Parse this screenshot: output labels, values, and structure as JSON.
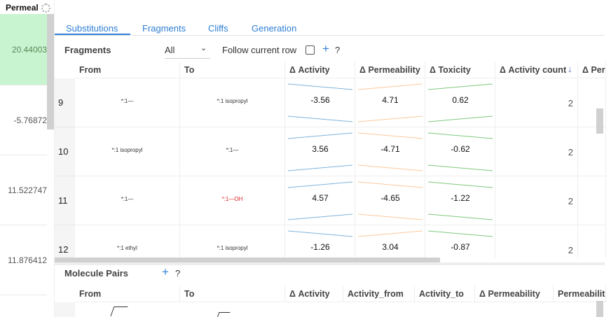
{
  "left_column": {
    "header": "Permeal",
    "values": [
      "20.44003",
      "-5.76872",
      "11.522747",
      "11.876412",
      ""
    ],
    "highlight_color": "#c8f5d0"
  },
  "tabs": [
    "Substitutions",
    "Fragments",
    "Cliffs",
    "Generation"
  ],
  "fragments_bar": {
    "title": "Fragments",
    "filter_value": "All",
    "follow_label": "Follow current row",
    "plus": "+",
    "help": "?"
  },
  "fragments_table": {
    "columns": [
      "From",
      "To",
      "Δ Activity",
      "Δ Permeability",
      "Δ Toxicity",
      "Δ Activity count",
      "Δ Per"
    ],
    "sort_icon": "↓",
    "rows": [
      {
        "id": "9",
        "from": "*:1—",
        "to": "*:1 isopropyl",
        "d_activity": "-3.56",
        "d_perm": "4.71",
        "d_tox": "0.62",
        "count": "2"
      },
      {
        "id": "10",
        "from": "*:1 isopropyl",
        "to": "*:1—",
        "d_activity": "3.56",
        "d_perm": "-4.71",
        "d_tox": "-0.62",
        "count": "2"
      },
      {
        "id": "11",
        "from": "*:1—",
        "to": "*:1—OH",
        "d_activity": "4.57",
        "d_perm": "-4.65",
        "d_tox": "-1.22",
        "count": "2"
      },
      {
        "id": "12",
        "from": "*:1 ethyl",
        "to": "*:1 isopropyl",
        "d_activity": "-1.26",
        "d_perm": "3.04",
        "d_tox": "-0.87",
        "count": "2"
      }
    ],
    "colors": {
      "activity": "#7fb3dc",
      "permeability": "#f9c99b",
      "toxicity": "#7dc87d"
    }
  },
  "pairs_bar": {
    "title": "Molecule Pairs",
    "plus": "+",
    "help": "?"
  },
  "pairs_table": {
    "columns": [
      "From",
      "To",
      "Δ Activity",
      "Activity_from",
      "Activity_to",
      "Δ Permeability",
      "Permeabilit"
    ]
  }
}
